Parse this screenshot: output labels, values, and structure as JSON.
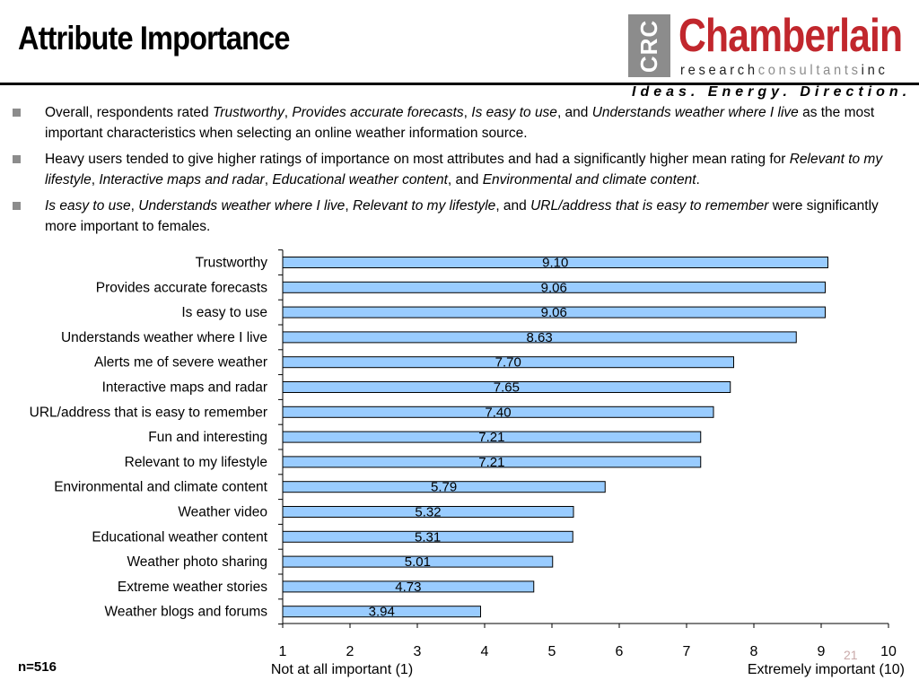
{
  "slide": {
    "title": "Attribute Importance",
    "page_number": "21",
    "sample_size": "n=516"
  },
  "logo": {
    "box_text": "CRC",
    "name": "Chamberlain",
    "sub_a": "research",
    "sub_b": "consultants",
    "sub_c": "inc",
    "tagline": "Ideas. Energy. Direction."
  },
  "bullets": [
    [
      {
        "t": "Overall, respondents rated ",
        "i": false
      },
      {
        "t": "Trustworthy",
        "i": true
      },
      {
        "t": ", ",
        "i": false
      },
      {
        "t": "Provides accurate forecasts",
        "i": true
      },
      {
        "t": ", ",
        "i": false
      },
      {
        "t": "Is easy to use",
        "i": true
      },
      {
        "t": ", and ",
        "i": false
      },
      {
        "t": "Understands weather where I live",
        "i": true
      },
      {
        "t": " as the most important characteristics when selecting an online weather information source.",
        "i": false
      }
    ],
    [
      {
        "t": "Heavy users tended to give higher ratings of importance on most attributes and had a significantly higher mean rating for ",
        "i": false
      },
      {
        "t": "Relevant to my lifestyle",
        "i": true
      },
      {
        "t": ", ",
        "i": false
      },
      {
        "t": "Interactive maps and radar",
        "i": true
      },
      {
        "t": ", ",
        "i": false
      },
      {
        "t": "Educational weather content",
        "i": true
      },
      {
        "t": ", and ",
        "i": false
      },
      {
        "t": "Environmental and climate content",
        "i": true
      },
      {
        "t": ".",
        "i": false
      }
    ],
    [
      {
        "t": "Is easy to use",
        "i": true
      },
      {
        "t": ", ",
        "i": false
      },
      {
        "t": "Understands weather where I live",
        "i": true
      },
      {
        "t": ", ",
        "i": false
      },
      {
        "t": "Relevant to my lifestyle",
        "i": true
      },
      {
        "t": ", and ",
        "i": false
      },
      {
        "t": "URL/address that is easy to remember",
        "i": true
      },
      {
        "t": " were significantly more important to females.",
        "i": false
      }
    ]
  ],
  "chart_data": {
    "type": "bar",
    "orientation": "horizontal",
    "categories": [
      "Trustworthy",
      "Provides accurate forecasts",
      "Is easy to use",
      "Understands weather where I live",
      "Alerts me of severe weather",
      "Interactive maps and radar",
      "URL/address that is easy to remember",
      "Fun and interesting",
      "Relevant to my lifestyle",
      "Environmental and climate content",
      "Weather video",
      "Educational weather content",
      "Weather photo sharing",
      "Extreme weather stories",
      "Weather blogs and forums"
    ],
    "values": [
      9.1,
      9.06,
      9.06,
      8.63,
      7.7,
      7.65,
      7.4,
      7.21,
      7.21,
      5.79,
      5.32,
      5.31,
      5.01,
      4.73,
      3.94
    ],
    "value_labels": [
      "9.10",
      "9.06",
      "9.06",
      "8.63",
      "7.70",
      "7.65",
      "7.40",
      "7.21",
      "7.21",
      "5.79",
      "5.32",
      "5.31",
      "5.01",
      "4.73",
      "3.94"
    ],
    "xlim": [
      1,
      10
    ],
    "xticks": [
      "1",
      "2",
      "3",
      "4",
      "5",
      "6",
      "7",
      "8",
      "9",
      "10"
    ],
    "x_min_label": "Not at all important (1)",
    "x_max_label": "Extremely important (10)",
    "bar_color": "#99ccff",
    "bar_edge_color": "#000000",
    "grid": false,
    "legend": "none"
  }
}
